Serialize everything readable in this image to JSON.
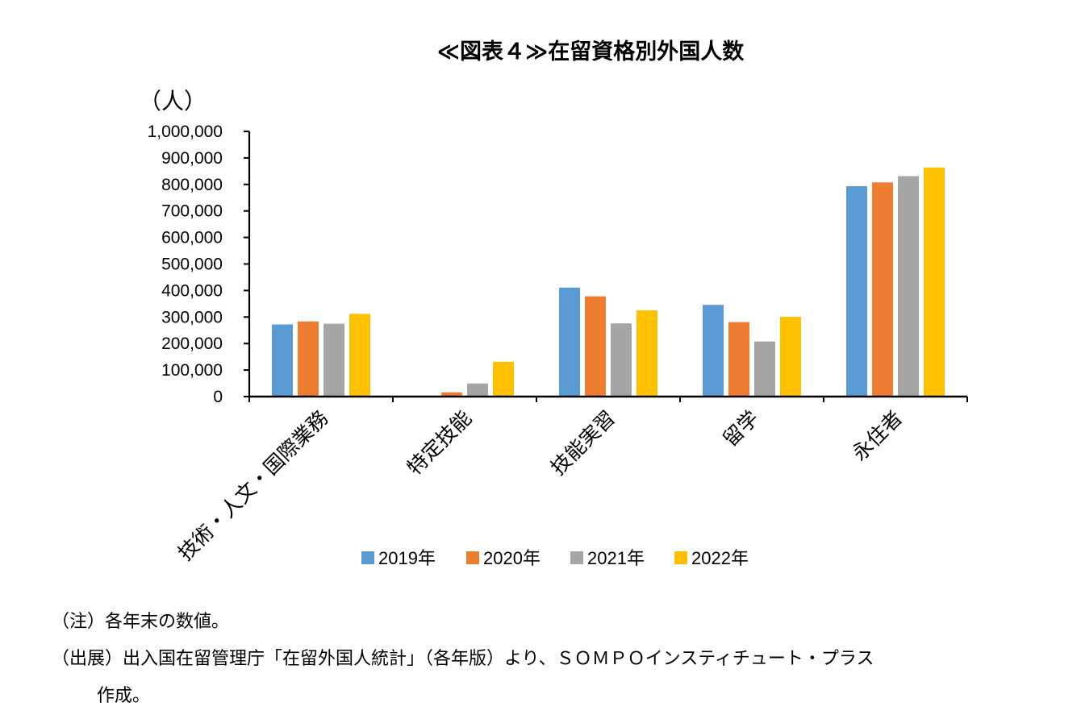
{
  "chart_data": {
    "type": "bar",
    "title": "≪図表４≫在留資格別外国人数",
    "ylabel": "（人）",
    "xlabel": "",
    "ylim": [
      0,
      1000000
    ],
    "yticks": [
      0,
      100000,
      200000,
      300000,
      400000,
      500000,
      600000,
      700000,
      800000,
      900000,
      1000000
    ],
    "ytick_labels": [
      "0",
      "100,000",
      "200,000",
      "300,000",
      "400,000",
      "500,000",
      "600,000",
      "700,000",
      "800,000",
      "900,000",
      "1,000,000"
    ],
    "categories": [
      "技術・人文・国際業務",
      "特定技能",
      "技能実習",
      "留学",
      "永住者"
    ],
    "series": [
      {
        "name": "2019年",
        "color": "#5b9bd5",
        "values": [
          271999,
          1621,
          410972,
          345791,
          793164
        ]
      },
      {
        "name": "2020年",
        "color": "#ed7d31",
        "values": [
          283380,
          15663,
          378200,
          280901,
          807517
        ]
      },
      {
        "name": "2021年",
        "color": "#a5a5a5",
        "values": [
          274740,
          49666,
          276123,
          207830,
          831157
        ]
      },
      {
        "name": "2022年",
        "color": "#ffc000",
        "values": [
          311961,
          130923,
          324940,
          300638,
          863936
        ]
      }
    ],
    "grid": false,
    "legend_position": "bottom"
  },
  "notes": {
    "note_line": "（注）各年末の数値。",
    "source_line": "（出展）出入国在留管理庁「在留外国人統計」（各年版）より、ＳＯＭＰＯインスティチュート・プラス",
    "source_continuation": "作成。"
  }
}
